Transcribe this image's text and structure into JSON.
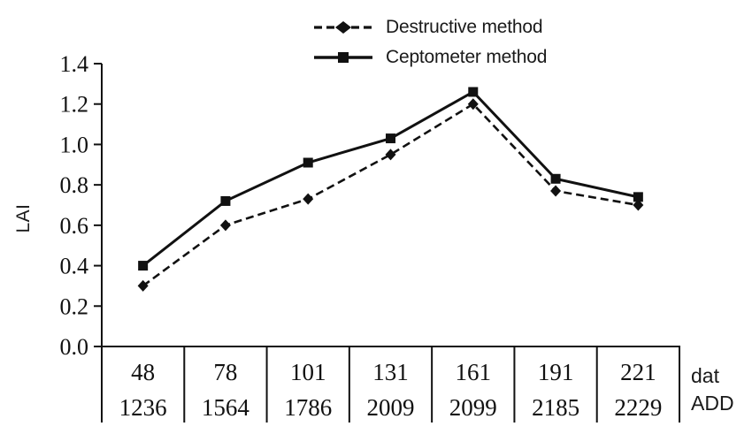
{
  "chart_data": {
    "type": "line",
    "title": "",
    "ylabel": "LAI",
    "x_axis": {
      "row1_label": "dat",
      "row2_label": "ADD",
      "row1_values": [
        "48",
        "78",
        "101",
        "131",
        "161",
        "191",
        "221"
      ],
      "row2_values": [
        "1236",
        "1564",
        "1786",
        "2009",
        "2099",
        "2185",
        "2229"
      ]
    },
    "ylim": [
      0.0,
      1.4
    ],
    "yticks": [
      0.0,
      0.2,
      0.4,
      0.6,
      0.8,
      1.0,
      1.2,
      1.4
    ],
    "ytick_labels": [
      "0.0",
      "0.2",
      "0.4",
      "0.6",
      "0.8",
      "1.0",
      "1.2",
      "1.4"
    ],
    "grid": false,
    "legend_position": "top-center",
    "line_color": "#111111",
    "background_color": "#ffffff",
    "series": [
      {
        "name": "Destructive method",
        "line_style": "dashed",
        "marker": "diamond",
        "values": [
          0.3,
          0.6,
          0.73,
          0.95,
          1.2,
          0.77,
          0.7
        ]
      },
      {
        "name": "Ceptometer method",
        "line_style": "solid",
        "marker": "square",
        "values": [
          0.4,
          0.72,
          0.91,
          1.03,
          1.26,
          0.83,
          0.74
        ]
      }
    ]
  }
}
